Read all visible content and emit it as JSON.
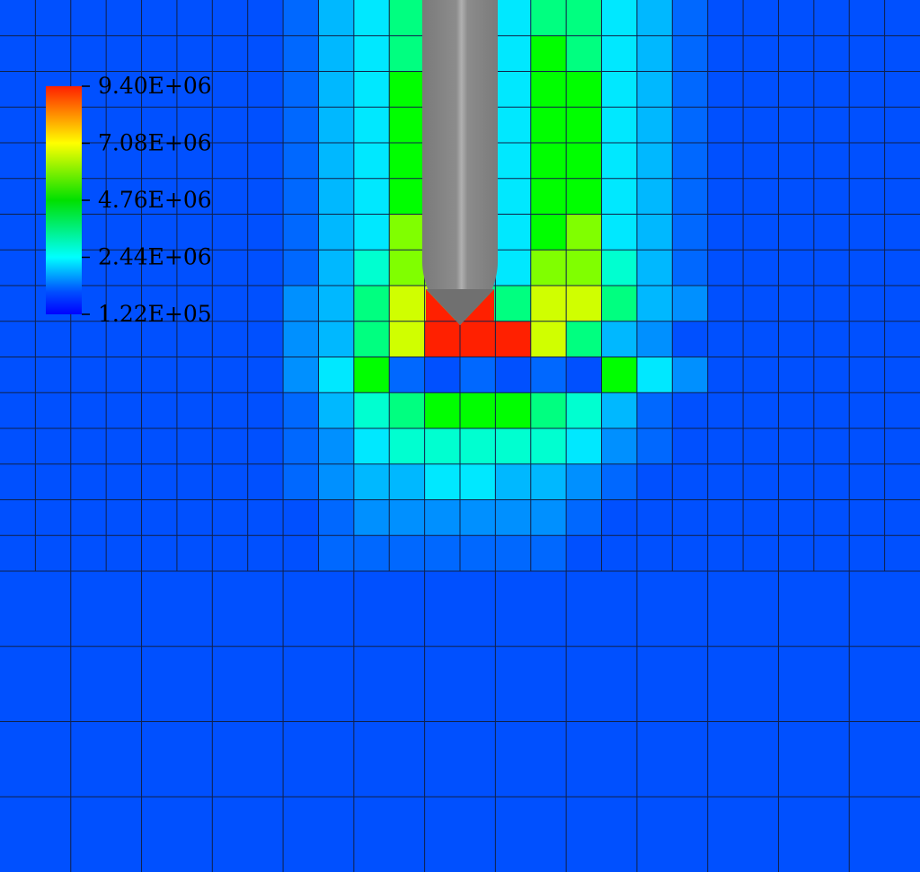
{
  "chart_data": {
    "type": "heatmap",
    "title": "",
    "colorbar": {
      "ticks": [
        "9.40E+06",
        "7.08E+06",
        "4.76E+06",
        "2.44E+06",
        "1.22E+05"
      ],
      "min": 122000,
      "max": 9400000,
      "placement": "top-left",
      "stops": [
        "#ff2000",
        "#ffff00",
        "#00e000",
        "#00ffff",
        "#0050ff",
        "#0000ff"
      ]
    },
    "grid": true,
    "fine_mesh": {
      "columns": 26,
      "rows": 16,
      "legend": {
        "0": "#0050ff",
        "1": "#0068ff",
        "2": "#0090ff",
        "3": "#00b8ff",
        "4": "#00e8ff",
        "5": "#00ffd0",
        "6": "#00ff80",
        "7": "#00ff00",
        "8": "#80ff00",
        "9": "#d0ff00",
        "10": "#ffe000",
        "11": "#ff2000"
      },
      "values": [
        "00000000134664466431000000",
        "00000000134674476431000000",
        "00000000134774477431000000",
        "00000000134774477431000000",
        "00000000134774477431000000",
        "00000000134774477431000000",
        "00000000134874478431000000",
        "00000000135884488531000000",
        "00000000236996699632000000",
        "00000000236911111196320000000",
        "00000000247101010742000000",
        "00000000135677765310000000",
        "00000000124555554210000000",
        "00000000123344332100000000",
        "00000000012222221000000000",
        "00000000011111110000000000"
      ]
    },
    "coarse_mesh": {
      "columns": 13,
      "rows": 4,
      "value": "#0050ff"
    },
    "probe": {
      "shape": "conical-tip cylinder",
      "color": "#8a8a8a"
    }
  }
}
